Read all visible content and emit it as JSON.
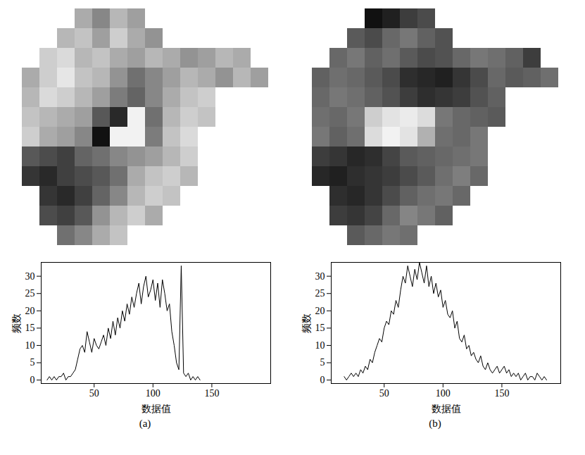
{
  "chart_data": [
    {
      "type": "heatmap",
      "tick_labels": false,
      "cells": [
        [
          null,
          null,
          null,
          95,
          80,
          100,
          90,
          null,
          null,
          null,
          null,
          null,
          null,
          null
        ],
        [
          null,
          null,
          100,
          105,
          90,
          110,
          95,
          85,
          null,
          null,
          null,
          null,
          null,
          null
        ],
        [
          null,
          110,
          115,
          100,
          105,
          95,
          90,
          100,
          95,
          85,
          90,
          100,
          95,
          null
        ],
        [
          95,
          110,
          120,
          105,
          100,
          85,
          70,
          80,
          90,
          100,
          95,
          85,
          100,
          90
        ],
        [
          100,
          115,
          110,
          100,
          90,
          75,
          65,
          80,
          95,
          105,
          110,
          null,
          null,
          null
        ],
        [
          105,
          100,
          95,
          90,
          60,
          40,
          125,
          70,
          100,
          110,
          105,
          null,
          null,
          null
        ],
        [
          110,
          95,
          90,
          80,
          30,
          125,
          125,
          75,
          105,
          115,
          null,
          null,
          null,
          null
        ],
        [
          60,
          55,
          50,
          65,
          70,
          80,
          85,
          90,
          100,
          110,
          null,
          null,
          null,
          null
        ],
        [
          45,
          40,
          50,
          55,
          60,
          70,
          95,
          105,
          110,
          100,
          null,
          null,
          null,
          null
        ],
        [
          null,
          45,
          40,
          50,
          65,
          80,
          100,
          110,
          105,
          null,
          null,
          null,
          null,
          null
        ],
        [
          null,
          55,
          50,
          60,
          85,
          100,
          110,
          95,
          null,
          null,
          null,
          null,
          null,
          null
        ],
        [
          null,
          null,
          70,
          80,
          95,
          105,
          null,
          null,
          null,
          null,
          null,
          null,
          null,
          null
        ]
      ]
    },
    {
      "type": "line",
      "caption": "(a)",
      "xlabel": "数据值",
      "ylabel": "频数",
      "color": "#000000",
      "xlim": [
        5,
        200
      ],
      "ylim": [
        -1,
        34
      ],
      "xticks": [
        50,
        100,
        150
      ],
      "yticks": [
        0,
        5,
        10,
        15,
        20,
        25,
        30
      ],
      "x": [
        10,
        12,
        14,
        16,
        18,
        20,
        22,
        24,
        26,
        28,
        30,
        32,
        34,
        36,
        38,
        40,
        42,
        44,
        46,
        48,
        50,
        52,
        54,
        56,
        58,
        60,
        62,
        64,
        66,
        68,
        70,
        72,
        74,
        76,
        78,
        80,
        82,
        84,
        86,
        88,
        90,
        92,
        94,
        96,
        98,
        100,
        102,
        104,
        106,
        108,
        110,
        112,
        114,
        116,
        118,
        120,
        122,
        124,
        126,
        128,
        130,
        132,
        134,
        136,
        138,
        140
      ],
      "values": [
        0,
        1,
        0,
        1,
        0,
        1,
        1,
        2,
        0,
        1,
        1,
        2,
        3,
        6,
        9,
        10,
        8,
        14,
        11,
        8,
        12,
        10,
        9,
        11,
        13,
        10,
        15,
        12,
        17,
        13,
        18,
        15,
        20,
        17,
        22,
        19,
        24,
        21,
        25,
        28,
        22,
        27,
        30,
        24,
        26,
        29,
        23,
        28,
        21,
        29,
        25,
        20,
        22,
        14,
        10,
        5,
        3,
        33,
        2,
        1,
        2,
        0,
        1,
        0,
        1,
        0
      ]
    },
    {
      "type": "heatmap",
      "tick_labels": false,
      "cells": [
        [
          null,
          null,
          null,
          30,
          40,
          60,
          70,
          null,
          null,
          null,
          null,
          null,
          null,
          null
        ],
        [
          null,
          null,
          80,
          70,
          90,
          100,
          85,
          75,
          null,
          null,
          null,
          null,
          null,
          null
        ],
        [
          null,
          90,
          100,
          85,
          95,
          80,
          70,
          75,
          90,
          100,
          95,
          85,
          60,
          null
        ],
        [
          85,
          95,
          90,
          80,
          70,
          50,
          45,
          40,
          55,
          70,
          90,
          80,
          85,
          95
        ],
        [
          90,
          100,
          95,
          85,
          75,
          60,
          50,
          55,
          60,
          75,
          85,
          null,
          null,
          null
        ],
        [
          95,
          90,
          100,
          160,
          175,
          180,
          170,
          100,
          90,
          85,
          80,
          null,
          null,
          null
        ],
        [
          100,
          85,
          95,
          170,
          185,
          175,
          140,
          95,
          90,
          100,
          null,
          null,
          null,
          null
        ],
        [
          60,
          55,
          45,
          50,
          65,
          80,
          85,
          90,
          95,
          100,
          null,
          null,
          null,
          null
        ],
        [
          45,
          40,
          50,
          55,
          60,
          70,
          80,
          95,
          105,
          90,
          null,
          null,
          null,
          null
        ],
        [
          null,
          50,
          45,
          55,
          70,
          85,
          95,
          100,
          90,
          null,
          null,
          null,
          null,
          null
        ],
        [
          null,
          60,
          55,
          65,
          90,
          110,
          100,
          85,
          null,
          null,
          null,
          null,
          null,
          null
        ],
        [
          null,
          null,
          80,
          90,
          100,
          95,
          null,
          null,
          null,
          null,
          null,
          null,
          null,
          null
        ]
      ]
    },
    {
      "type": "line",
      "caption": "(b)",
      "xlabel": "数据值",
      "ylabel": "频数",
      "color": "#000000",
      "xlim": [
        5,
        200
      ],
      "ylim": [
        -1,
        34
      ],
      "xticks": [
        50,
        100,
        150
      ],
      "yticks": [
        0,
        5,
        10,
        15,
        20,
        25,
        30
      ],
      "x": [
        16,
        18,
        20,
        22,
        24,
        26,
        28,
        30,
        32,
        34,
        36,
        38,
        40,
        42,
        44,
        46,
        48,
        50,
        52,
        54,
        56,
        58,
        60,
        62,
        64,
        66,
        68,
        70,
        72,
        74,
        76,
        78,
        80,
        82,
        84,
        86,
        88,
        90,
        92,
        94,
        96,
        98,
        100,
        102,
        104,
        106,
        108,
        110,
        112,
        114,
        116,
        118,
        120,
        122,
        124,
        126,
        128,
        130,
        132,
        134,
        136,
        138,
        140,
        142,
        144,
        146,
        148,
        150,
        152,
        154,
        156,
        158,
        160,
        162,
        164,
        166,
        168,
        170,
        172,
        174,
        176,
        178,
        180,
        182,
        184,
        186,
        188
      ],
      "values": [
        1,
        0,
        1,
        2,
        1,
        2,
        1,
        3,
        2,
        4,
        3,
        6,
        5,
        8,
        10,
        12,
        11,
        15,
        17,
        16,
        20,
        19,
        23,
        21,
        26,
        30,
        28,
        33,
        30,
        27,
        32,
        29,
        34,
        31,
        28,
        33,
        27,
        30,
        25,
        28,
        24,
        26,
        21,
        23,
        19,
        18,
        20,
        15,
        17,
        12,
        11,
        13,
        9,
        10,
        7,
        8,
        6,
        5,
        7,
        4,
        3,
        5,
        3,
        2,
        3,
        4,
        2,
        3,
        4,
        2,
        3,
        1,
        2,
        1,
        2,
        0,
        1,
        2,
        0,
        1,
        1,
        0,
        2,
        1,
        0,
        1,
        0
      ]
    }
  ]
}
